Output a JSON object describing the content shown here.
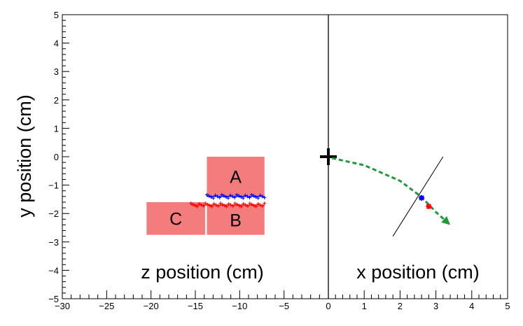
{
  "chart_data": {
    "type": "scatter",
    "xlabel_left": "z position (cm)",
    "xlabel_right": "x position (cm)",
    "ylabel": "y position (cm)",
    "ylim": [
      -5,
      5
    ],
    "left_xlim": [
      -30,
      0
    ],
    "right_xlim": [
      0,
      5
    ],
    "x_ticks_left": [
      -30,
      -25,
      -20,
      -15,
      -10,
      -5
    ],
    "x_ticks_right": [
      0,
      1,
      2,
      3,
      4,
      5
    ],
    "y_ticks": [
      -5,
      -4,
      -3,
      -2,
      -1,
      0,
      1,
      2,
      3,
      4,
      5
    ],
    "grid": false,
    "colors": {
      "box": "#f47c7c",
      "blue": "#0000ff",
      "red": "#ff0000",
      "trajectory": "#1f9a3a",
      "axis": "#000000"
    },
    "boxes": [
      {
        "label": "A",
        "z": [
          -13.7,
          -7.2
        ],
        "y": [
          -1.4,
          0.0
        ]
      },
      {
        "label": "B",
        "z": [
          -13.7,
          -7.2
        ],
        "y": [
          -2.75,
          -1.7
        ]
      },
      {
        "label": "C",
        "z": [
          -20.5,
          -13.9
        ],
        "y": [
          -2.75,
          -1.6
        ]
      }
    ],
    "hit_lines": [
      {
        "name": "blue",
        "z": [
          -13.7,
          -7.2
        ],
        "y": -1.4
      },
      {
        "name": "red",
        "z": [
          -15.5,
          -7.2
        ],
        "y": -1.7
      }
    ],
    "origin_marker": {
      "x": 0,
      "y": 0,
      "symbol": "+"
    },
    "trajectory": {
      "x": [
        0.1,
        1.0,
        2.0,
        2.6,
        3.0,
        3.4
      ],
      "y": [
        -0.05,
        -0.3,
        -0.85,
        -1.42,
        -1.95,
        -2.4
      ]
    },
    "track_line": {
      "x": [
        1.8,
        3.2
      ],
      "y": [
        -2.8,
        0.0
      ]
    },
    "markers": [
      {
        "name": "blue",
        "x": 2.6,
        "y": -1.45
      },
      {
        "name": "red",
        "x": 2.8,
        "y": -1.75
      }
    ]
  }
}
